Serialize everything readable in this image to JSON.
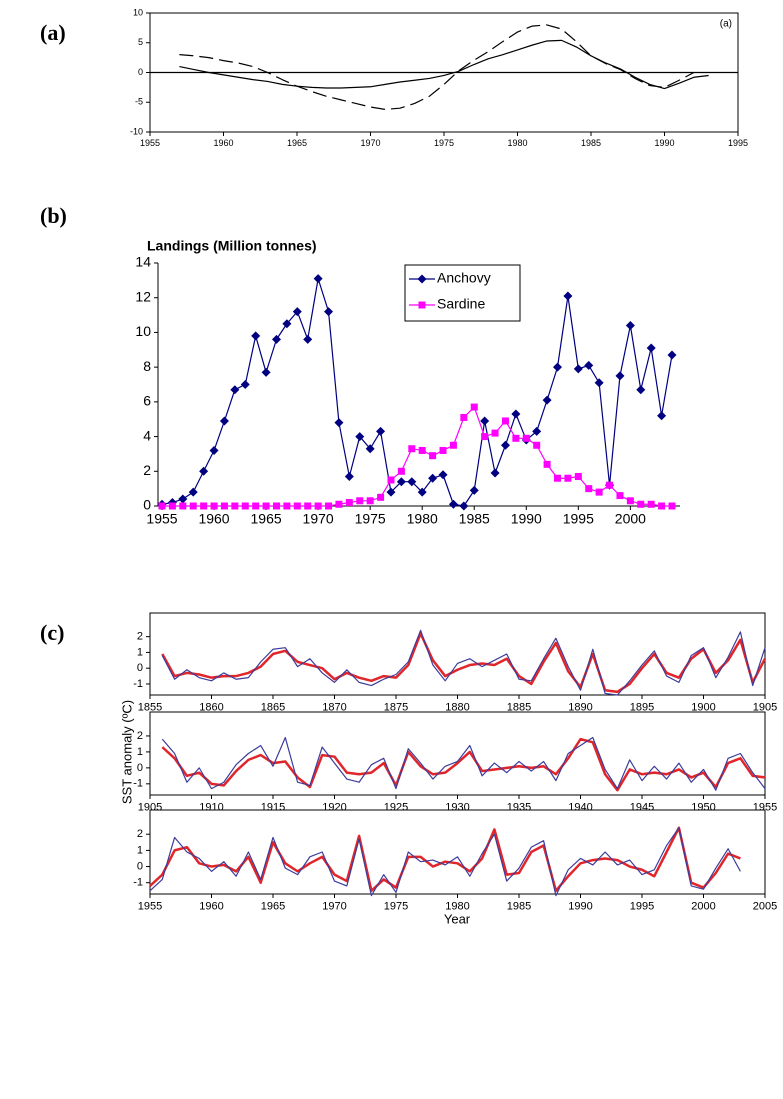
{
  "chart_data": [
    {
      "type": "line",
      "panel_label": "(a)",
      "annotation": "(a)",
      "x": [
        1957,
        1958,
        1959,
        1960,
        1961,
        1962,
        1963,
        1964,
        1965,
        1966,
        1967,
        1968,
        1969,
        1970,
        1971,
        1972,
        1973,
        1974,
        1975,
        1976,
        1977,
        1978,
        1979,
        1980,
        1981,
        1982,
        1983,
        1984,
        1985,
        1986,
        1987,
        1988,
        1989,
        1990,
        1991,
        1992,
        1993
      ],
      "xlim": [
        1955,
        1995
      ],
      "xticks": [
        1955,
        1960,
        1965,
        1970,
        1975,
        1980,
        1985,
        1990,
        1995
      ],
      "ylim": [
        -10,
        10
      ],
      "yticks": [
        -10,
        -5,
        0,
        5,
        10
      ],
      "zero_line": true,
      "frame": true,
      "series": [
        {
          "color": "#000000",
          "dash": true,
          "values": [
            3.0,
            2.8,
            2.5,
            2.0,
            1.6,
            1.0,
            0.0,
            -1.2,
            -2.3,
            -3.2,
            -4.0,
            -4.6,
            -5.2,
            -5.8,
            -6.2,
            -6.0,
            -5.2,
            -4.0,
            -2.0,
            0.3,
            2.0,
            3.5,
            5.2,
            6.8,
            7.8,
            8.0,
            7.3,
            5.2,
            2.8,
            1.5,
            0.5,
            -1.0,
            -2.2,
            -2.5,
            -1.3,
            0.0,
            null
          ]
        },
        {
          "color": "#000000",
          "dash": false,
          "values": [
            1.0,
            0.5,
            0.0,
            -0.4,
            -0.8,
            -1.2,
            -1.5,
            -2.0,
            -2.3,
            -2.5,
            -2.6,
            -2.6,
            -2.5,
            -2.4,
            -2.0,
            -1.6,
            -1.3,
            -1.0,
            -0.5,
            0.2,
            1.3,
            2.3,
            3.0,
            3.8,
            4.6,
            5.3,
            5.4,
            4.3,
            2.8,
            1.6,
            0.6,
            -0.8,
            -2.0,
            -2.7,
            -1.8,
            -0.8,
            -0.5
          ]
        }
      ]
    },
    {
      "type": "line",
      "panel_label": "(b)",
      "title": "Landings (Million tonnes)",
      "x": [
        1955,
        1956,
        1957,
        1958,
        1959,
        1960,
        1961,
        1962,
        1963,
        1964,
        1965,
        1966,
        1967,
        1968,
        1969,
        1970,
        1971,
        1972,
        1973,
        1974,
        1975,
        1976,
        1977,
        1978,
        1979,
        1980,
        1981,
        1982,
        1983,
        1984,
        1985,
        1986,
        1987,
        1988,
        1989,
        1990,
        1991,
        1992,
        1993,
        1994,
        1995,
        1996,
        1997,
        1998,
        1999,
        2000,
        2001,
        2002,
        2003,
        2004
      ],
      "xlim": [
        1955,
        2004
      ],
      "xticks": [
        1955,
        1960,
        1965,
        1970,
        1975,
        1980,
        1985,
        1990,
        1995,
        2000
      ],
      "ylim": [
        0,
        14
      ],
      "yticks": [
        0,
        2,
        4,
        6,
        8,
        10,
        12,
        14
      ],
      "frame": false,
      "legend": "top-center",
      "series": [
        {
          "name": "Anchovy",
          "color": "#000080",
          "marker": "diamond",
          "values": [
            0.1,
            0.2,
            0.4,
            0.8,
            2.0,
            3.2,
            4.9,
            6.7,
            7.0,
            9.8,
            7.7,
            9.6,
            10.5,
            11.2,
            9.6,
            13.1,
            11.2,
            4.8,
            1.7,
            4.0,
            3.3,
            4.3,
            0.8,
            1.4,
            1.4,
            0.8,
            1.6,
            1.8,
            0.1,
            0.0,
            0.9,
            4.9,
            1.9,
            3.5,
            5.3,
            3.8,
            4.3,
            6.1,
            8.0,
            12.1,
            7.9,
            8.1,
            7.1,
            1.2,
            7.5,
            10.4,
            6.7,
            9.1,
            5.2,
            8.7
          ]
        },
        {
          "name": "Sardine",
          "color": "#ff00ff",
          "marker": "square",
          "values": [
            0.0,
            0.0,
            0.0,
            0.0,
            0.0,
            0.0,
            0.0,
            0.0,
            0.0,
            0.0,
            0.0,
            0.0,
            0.0,
            0.0,
            0.0,
            0.0,
            0.0,
            0.1,
            0.2,
            0.3,
            0.3,
            0.5,
            1.5,
            2.0,
            3.3,
            3.2,
            2.9,
            3.2,
            3.5,
            5.1,
            5.7,
            4.0,
            4.2,
            4.9,
            3.9,
            3.9,
            3.5,
            2.4,
            1.6,
            1.6,
            1.7,
            1.0,
            0.8,
            1.2,
            0.6,
            0.3,
            0.1,
            0.1,
            0.0,
            0.0
          ]
        }
      ]
    },
    {
      "type": "line",
      "panel_label": "(c)",
      "x": [
        1856,
        1857,
        1858,
        1859,
        1860,
        1861,
        1862,
        1863,
        1864,
        1865,
        1866,
        1867,
        1868,
        1869,
        1870,
        1871,
        1872,
        1873,
        1874,
        1875,
        1876,
        1877,
        1878,
        1879,
        1880,
        1881,
        1882,
        1883,
        1884,
        1885,
        1886,
        1887,
        1888,
        1889,
        1890,
        1891,
        1892,
        1893,
        1894,
        1895,
        1896,
        1897,
        1898,
        1899,
        1900,
        1901,
        1902,
        1903,
        1904,
        1905
      ],
      "xlim": [
        1855,
        1905
      ],
      "xticks": [
        1855,
        1860,
        1865,
        1870,
        1875,
        1880,
        1885,
        1890,
        1895,
        1900,
        1905
      ],
      "ylim": [
        -1.7,
        3.5
      ],
      "yticks": [
        -1,
        0,
        1,
        2
      ],
      "frame": true,
      "series": [
        {
          "color": "#e0262b",
          "width": 2.5,
          "values": [
            0.9,
            -0.5,
            -0.3,
            -0.4,
            -0.6,
            -0.5,
            -0.5,
            -0.3,
            0.1,
            0.9,
            1.1,
            0.4,
            0.2,
            0.0,
            -0.7,
            -0.3,
            -0.6,
            -0.8,
            -0.5,
            -0.6,
            0.2,
            2.2,
            0.5,
            -0.5,
            -0.1,
            0.2,
            0.3,
            0.2,
            0.6,
            -0.5,
            -1.0,
            0.4,
            1.6,
            -0.2,
            -1.2,
            0.9,
            -1.4,
            -1.5,
            -1.0,
            0.0,
            0.9,
            -0.3,
            -0.6,
            0.6,
            1.2,
            -0.3,
            0.5,
            1.8,
            -0.9,
            0.6
          ]
        },
        {
          "color": "#3c3c9c",
          "width": 1.2,
          "values": [
            0.8,
            -0.7,
            -0.1,
            -0.6,
            -0.8,
            -0.3,
            -0.7,
            -0.6,
            0.4,
            1.2,
            1.3,
            0.1,
            0.6,
            -0.3,
            -0.9,
            -0.1,
            -0.9,
            -1.1,
            -0.7,
            -0.4,
            0.4,
            2.4,
            0.2,
            -0.8,
            0.3,
            0.6,
            0.1,
            0.5,
            0.9,
            -0.7,
            -0.8,
            0.6,
            1.9,
            0.1,
            -1.4,
            1.2,
            -1.6,
            -1.7,
            -0.8,
            0.2,
            1.1,
            -0.5,
            -0.9,
            0.8,
            1.3,
            -0.6,
            0.7,
            2.3,
            -1.1,
            1.3
          ]
        }
      ]
    },
    {
      "type": "line",
      "ylabel": "SST anomaly (ºC)",
      "x": [
        1906,
        1907,
        1908,
        1909,
        1910,
        1911,
        1912,
        1913,
        1914,
        1915,
        1916,
        1917,
        1918,
        1919,
        1920,
        1921,
        1922,
        1923,
        1924,
        1925,
        1926,
        1927,
        1928,
        1929,
        1930,
        1931,
        1932,
        1933,
        1934,
        1935,
        1936,
        1937,
        1938,
        1939,
        1940,
        1941,
        1942,
        1943,
        1944,
        1945,
        1946,
        1947,
        1948,
        1949,
        1950,
        1951,
        1952,
        1953,
        1954,
        1955
      ],
      "xlim": [
        1905,
        1955
      ],
      "xticks": [
        1905,
        1910,
        1915,
        1920,
        1925,
        1930,
        1935,
        1940,
        1945,
        1950,
        1955
      ],
      "ylim": [
        -1.7,
        3.5
      ],
      "yticks": [
        -1,
        0,
        1,
        2
      ],
      "frame": true,
      "series": [
        {
          "color": "#e0262b",
          "width": 2.5,
          "values": [
            1.3,
            0.6,
            -0.5,
            -0.3,
            -1.0,
            -1.1,
            -0.2,
            0.5,
            0.8,
            0.3,
            0.4,
            -0.6,
            -1.2,
            0.8,
            0.7,
            -0.3,
            -0.4,
            -0.3,
            0.3,
            -1.1,
            1.0,
            0.1,
            -0.4,
            -0.3,
            0.3,
            1.0,
            -0.2,
            -0.1,
            0.0,
            0.1,
            0.0,
            0.1,
            -0.4,
            0.6,
            1.8,
            1.6,
            -0.4,
            -1.4,
            -0.1,
            -0.4,
            -0.3,
            -0.4,
            -0.1,
            -0.6,
            -0.3,
            -1.2,
            0.3,
            0.6,
            -0.5,
            -0.6
          ]
        },
        {
          "color": "#3c3c9c",
          "width": 1.2,
          "values": [
            1.8,
            0.9,
            -0.9,
            0.0,
            -1.3,
            -0.9,
            0.2,
            0.9,
            1.4,
            0.1,
            1.9,
            -0.9,
            -1.1,
            1.3,
            0.3,
            -0.7,
            -0.9,
            0.2,
            0.6,
            -1.3,
            1.2,
            0.3,
            -0.7,
            0.1,
            0.4,
            1.4,
            -0.5,
            0.3,
            -0.3,
            0.4,
            -0.2,
            0.4,
            -0.8,
            0.9,
            1.4,
            1.9,
            -0.1,
            -1.3,
            0.5,
            -0.8,
            0.1,
            -0.7,
            0.3,
            -0.9,
            -0.1,
            -1.4,
            0.6,
            0.9,
            -0.3,
            -1.3
          ]
        }
      ]
    },
    {
      "type": "line",
      "xlabel": "Year",
      "x": [
        1955,
        1956,
        1957,
        1958,
        1959,
        1960,
        1961,
        1962,
        1963,
        1964,
        1965,
        1966,
        1967,
        1968,
        1969,
        1970,
        1971,
        1972,
        1973,
        1974,
        1975,
        1976,
        1977,
        1978,
        1979,
        1980,
        1981,
        1982,
        1983,
        1984,
        1985,
        1986,
        1987,
        1988,
        1989,
        1990,
        1991,
        1992,
        1993,
        1994,
        1995,
        1996,
        1997,
        1998,
        1999,
        2000,
        2001,
        2002,
        2003
      ],
      "xlim": [
        1955,
        2005
      ],
      "xticks": [
        1955,
        1960,
        1965,
        1970,
        1975,
        1980,
        1985,
        1990,
        1995,
        2000,
        2005
      ],
      "ylim": [
        -1.7,
        3.5
      ],
      "yticks": [
        -1,
        0,
        1,
        2
      ],
      "frame": true,
      "series": [
        {
          "color": "#e0262b",
          "width": 2.5,
          "values": [
            -1.2,
            -0.5,
            1.0,
            1.2,
            0.2,
            0.0,
            0.1,
            -0.3,
            0.6,
            -1.0,
            1.5,
            0.2,
            -0.3,
            0.2,
            0.6,
            -0.5,
            -0.9,
            1.9,
            -1.5,
            -0.8,
            -1.3,
            0.6,
            0.6,
            0.0,
            0.3,
            0.2,
            -0.3,
            0.5,
            2.3,
            -0.5,
            -0.4,
            0.9,
            1.3,
            -1.5,
            -0.6,
            0.2,
            0.4,
            0.5,
            0.4,
            0.0,
            -0.2,
            -0.6,
            0.9,
            2.4,
            -1.0,
            -1.3,
            -0.4,
            0.8,
            0.5
          ]
        },
        {
          "color": "#3c3c9c",
          "width": 1.2,
          "values": [
            -1.5,
            -0.8,
            1.8,
            0.9,
            0.5,
            -0.3,
            0.3,
            -0.6,
            0.9,
            -0.8,
            1.8,
            -0.1,
            -0.5,
            0.6,
            0.9,
            -0.9,
            -1.2,
            1.7,
            -1.8,
            -0.5,
            -1.6,
            0.9,
            0.3,
            0.4,
            0.1,
            0.6,
            -0.6,
            0.8,
            2.0,
            -0.9,
            -0.1,
            1.2,
            1.6,
            -1.8,
            -0.2,
            0.5,
            0.1,
            0.9,
            0.1,
            0.4,
            -0.5,
            -0.2,
            1.3,
            2.4,
            -1.2,
            -1.4,
            -0.1,
            1.1,
            -0.3
          ]
        }
      ]
    }
  ]
}
